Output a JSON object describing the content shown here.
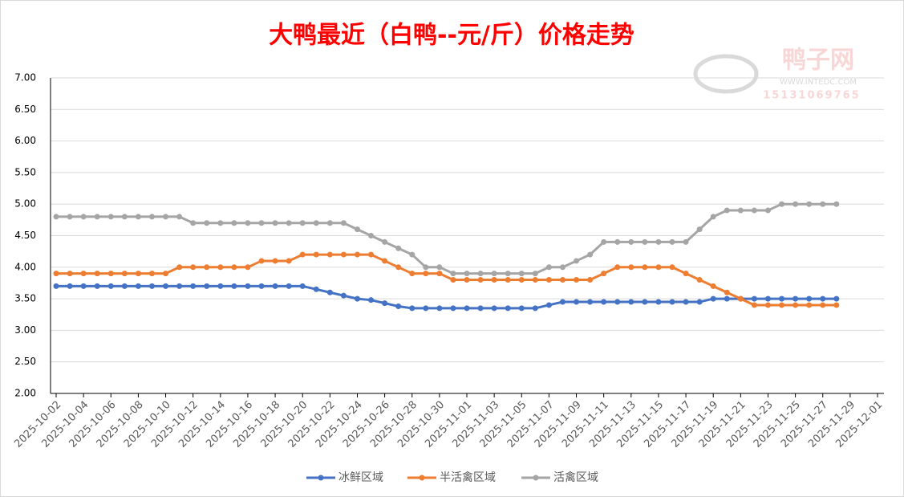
{
  "chart_data": {
    "type": "line",
    "title": "大鸭最近（白鸭--元/斤）价格走势",
    "watermark": {
      "name": "鸭子网",
      "url": "WWW.INTEDC.COM",
      "phone": "15131069765"
    },
    "x": [
      "2025-10-02",
      "2025-10-03",
      "2025-10-04",
      "2025-10-05",
      "2025-10-06",
      "2025-10-07",
      "2025-10-08",
      "2025-10-09",
      "2025-10-10",
      "2025-10-11",
      "2025-10-12",
      "2025-10-13",
      "2025-10-14",
      "2025-10-15",
      "2025-10-16",
      "2025-10-17",
      "2025-10-18",
      "2025-10-19",
      "2025-10-20",
      "2025-10-21",
      "2025-10-22",
      "2025-10-23",
      "2025-10-24",
      "2025-10-25",
      "2025-10-26",
      "2025-10-27",
      "2025-10-28",
      "2025-10-29",
      "2025-10-30",
      "2025-10-31",
      "2025-11-01",
      "2025-11-02",
      "2025-11-03",
      "2025-11-04",
      "2025-11-05",
      "2025-11-06",
      "2025-11-07",
      "2025-11-08",
      "2025-11-09",
      "2025-11-10",
      "2025-11-11",
      "2025-11-12",
      "2025-11-13",
      "2025-11-14",
      "2025-11-15",
      "2025-11-16",
      "2025-11-17",
      "2025-11-18",
      "2025-11-19",
      "2025-11-20",
      "2025-11-21",
      "2025-11-22",
      "2025-11-23",
      "2025-11-24",
      "2025-11-25",
      "2025-11-26",
      "2025-11-27",
      "2025-11-28"
    ],
    "series": [
      {
        "name": "冰鲜区域",
        "color": "#4472c4",
        "values": [
          3.7,
          3.7,
          3.7,
          3.7,
          3.7,
          3.7,
          3.7,
          3.7,
          3.7,
          3.7,
          3.7,
          3.7,
          3.7,
          3.7,
          3.7,
          3.7,
          3.7,
          3.7,
          3.7,
          3.65,
          3.6,
          3.55,
          3.5,
          3.48,
          3.43,
          3.38,
          3.35,
          3.35,
          3.35,
          3.35,
          3.35,
          3.35,
          3.35,
          3.35,
          3.35,
          3.35,
          3.4,
          3.45,
          3.45,
          3.45,
          3.45,
          3.45,
          3.45,
          3.45,
          3.45,
          3.45,
          3.45,
          3.45,
          3.5,
          3.5,
          3.5,
          3.5,
          3.5,
          3.5,
          3.5,
          3.5,
          3.5,
          3.5
        ]
      },
      {
        "name": "半活禽区域",
        "color": "#ed7d31",
        "values": [
          3.9,
          3.9,
          3.9,
          3.9,
          3.9,
          3.9,
          3.9,
          3.9,
          3.9,
          4.0,
          4.0,
          4.0,
          4.0,
          4.0,
          4.0,
          4.1,
          4.1,
          4.1,
          4.2,
          4.2,
          4.2,
          4.2,
          4.2,
          4.2,
          4.1,
          4.0,
          3.9,
          3.9,
          3.9,
          3.8,
          3.8,
          3.8,
          3.8,
          3.8,
          3.8,
          3.8,
          3.8,
          3.8,
          3.8,
          3.8,
          3.9,
          4.0,
          4.0,
          4.0,
          4.0,
          4.0,
          3.9,
          3.8,
          3.7,
          3.6,
          3.5,
          3.4,
          3.4,
          3.4,
          3.4,
          3.4,
          3.4,
          3.4
        ]
      },
      {
        "name": "活禽区域",
        "color": "#a5a5a5",
        "values": [
          4.8,
          4.8,
          4.8,
          4.8,
          4.8,
          4.8,
          4.8,
          4.8,
          4.8,
          4.8,
          4.7,
          4.7,
          4.7,
          4.7,
          4.7,
          4.7,
          4.7,
          4.7,
          4.7,
          4.7,
          4.7,
          4.7,
          4.6,
          4.5,
          4.4,
          4.3,
          4.2,
          4.0,
          4.0,
          3.9,
          3.9,
          3.9,
          3.9,
          3.9,
          3.9,
          3.9,
          4.0,
          4.0,
          4.1,
          4.2,
          4.4,
          4.4,
          4.4,
          4.4,
          4.4,
          4.4,
          4.4,
          4.6,
          4.8,
          4.9,
          4.9,
          4.9,
          4.9,
          5.0,
          5.0,
          5.0,
          5.0,
          5.0
        ]
      }
    ],
    "xlim": [
      "2025-10-02",
      "2025-12-01"
    ],
    "xticks": [
      "2025-10-02",
      "2025-10-04",
      "2025-10-06",
      "2025-10-08",
      "2025-10-10",
      "2025-10-12",
      "2025-10-14",
      "2025-10-16",
      "2025-10-18",
      "2025-10-20",
      "2025-10-22",
      "2025-10-24",
      "2025-10-26",
      "2025-10-28",
      "2025-10-30",
      "2025-11-01",
      "2025-11-03",
      "2025-11-05",
      "2025-11-07",
      "2025-11-09",
      "2025-11-11",
      "2025-11-13",
      "2025-11-15",
      "2025-11-17",
      "2025-11-19",
      "2025-11-21",
      "2025-11-23",
      "2025-11-25",
      "2025-11-27",
      "2025-11-29",
      "2025-12-01"
    ],
    "ylim": [
      2,
      7
    ],
    "yticks": [
      {
        "value": 2,
        "label": "2.00"
      },
      {
        "value": 2.5,
        "label": "2.50"
      },
      {
        "value": 3,
        "label": "3.00"
      },
      {
        "value": 3.5,
        "label": "3.50"
      },
      {
        "value": 4,
        "label": "4.00"
      },
      {
        "value": 4.5,
        "label": "4.50"
      },
      {
        "value": 5,
        "label": "5.00"
      },
      {
        "value": 5.5,
        "label": "5.50"
      },
      {
        "value": 6,
        "label": "6.00"
      },
      {
        "value": 6.5,
        "label": "6.50"
      },
      {
        "value": 7,
        "label": "7.00"
      }
    ],
    "grid": true,
    "legend": "bottom"
  }
}
